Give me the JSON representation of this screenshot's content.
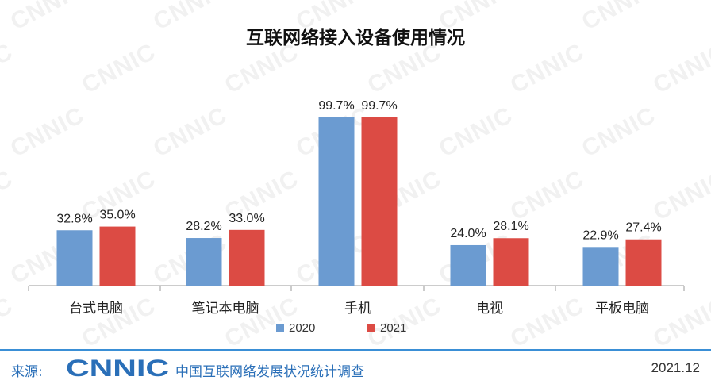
{
  "chart_data": {
    "type": "bar",
    "title": "互联网络接入设备使用情况",
    "categories": [
      "台式电脑",
      "笔记本电脑",
      "手机",
      "电视",
      "平板电脑"
    ],
    "series": [
      {
        "name": "2020",
        "color": "#6b9bd1",
        "values": [
          32.8,
          28.2,
          99.7,
          24.0,
          22.9
        ],
        "labels": [
          "32.8%",
          "28.2%",
          "99.7%",
          "24.0%",
          "22.9%"
        ]
      },
      {
        "name": "2021",
        "color": "#dc4b44",
        "values": [
          35.0,
          33.0,
          99.7,
          28.1,
          27.4
        ],
        "labels": [
          "35.0%",
          "33.0%",
          "99.7%",
          "28.1%",
          "27.4%"
        ]
      }
    ],
    "ylim": [
      0,
      100
    ],
    "grid": false,
    "legend_position": "bottom"
  },
  "watermark": {
    "text": "CNNIC"
  },
  "footer": {
    "source_label": "来源:",
    "logo_text": "CNNIC",
    "organization": "中国互联网络发展状况统计调查",
    "date": "2021.12"
  }
}
